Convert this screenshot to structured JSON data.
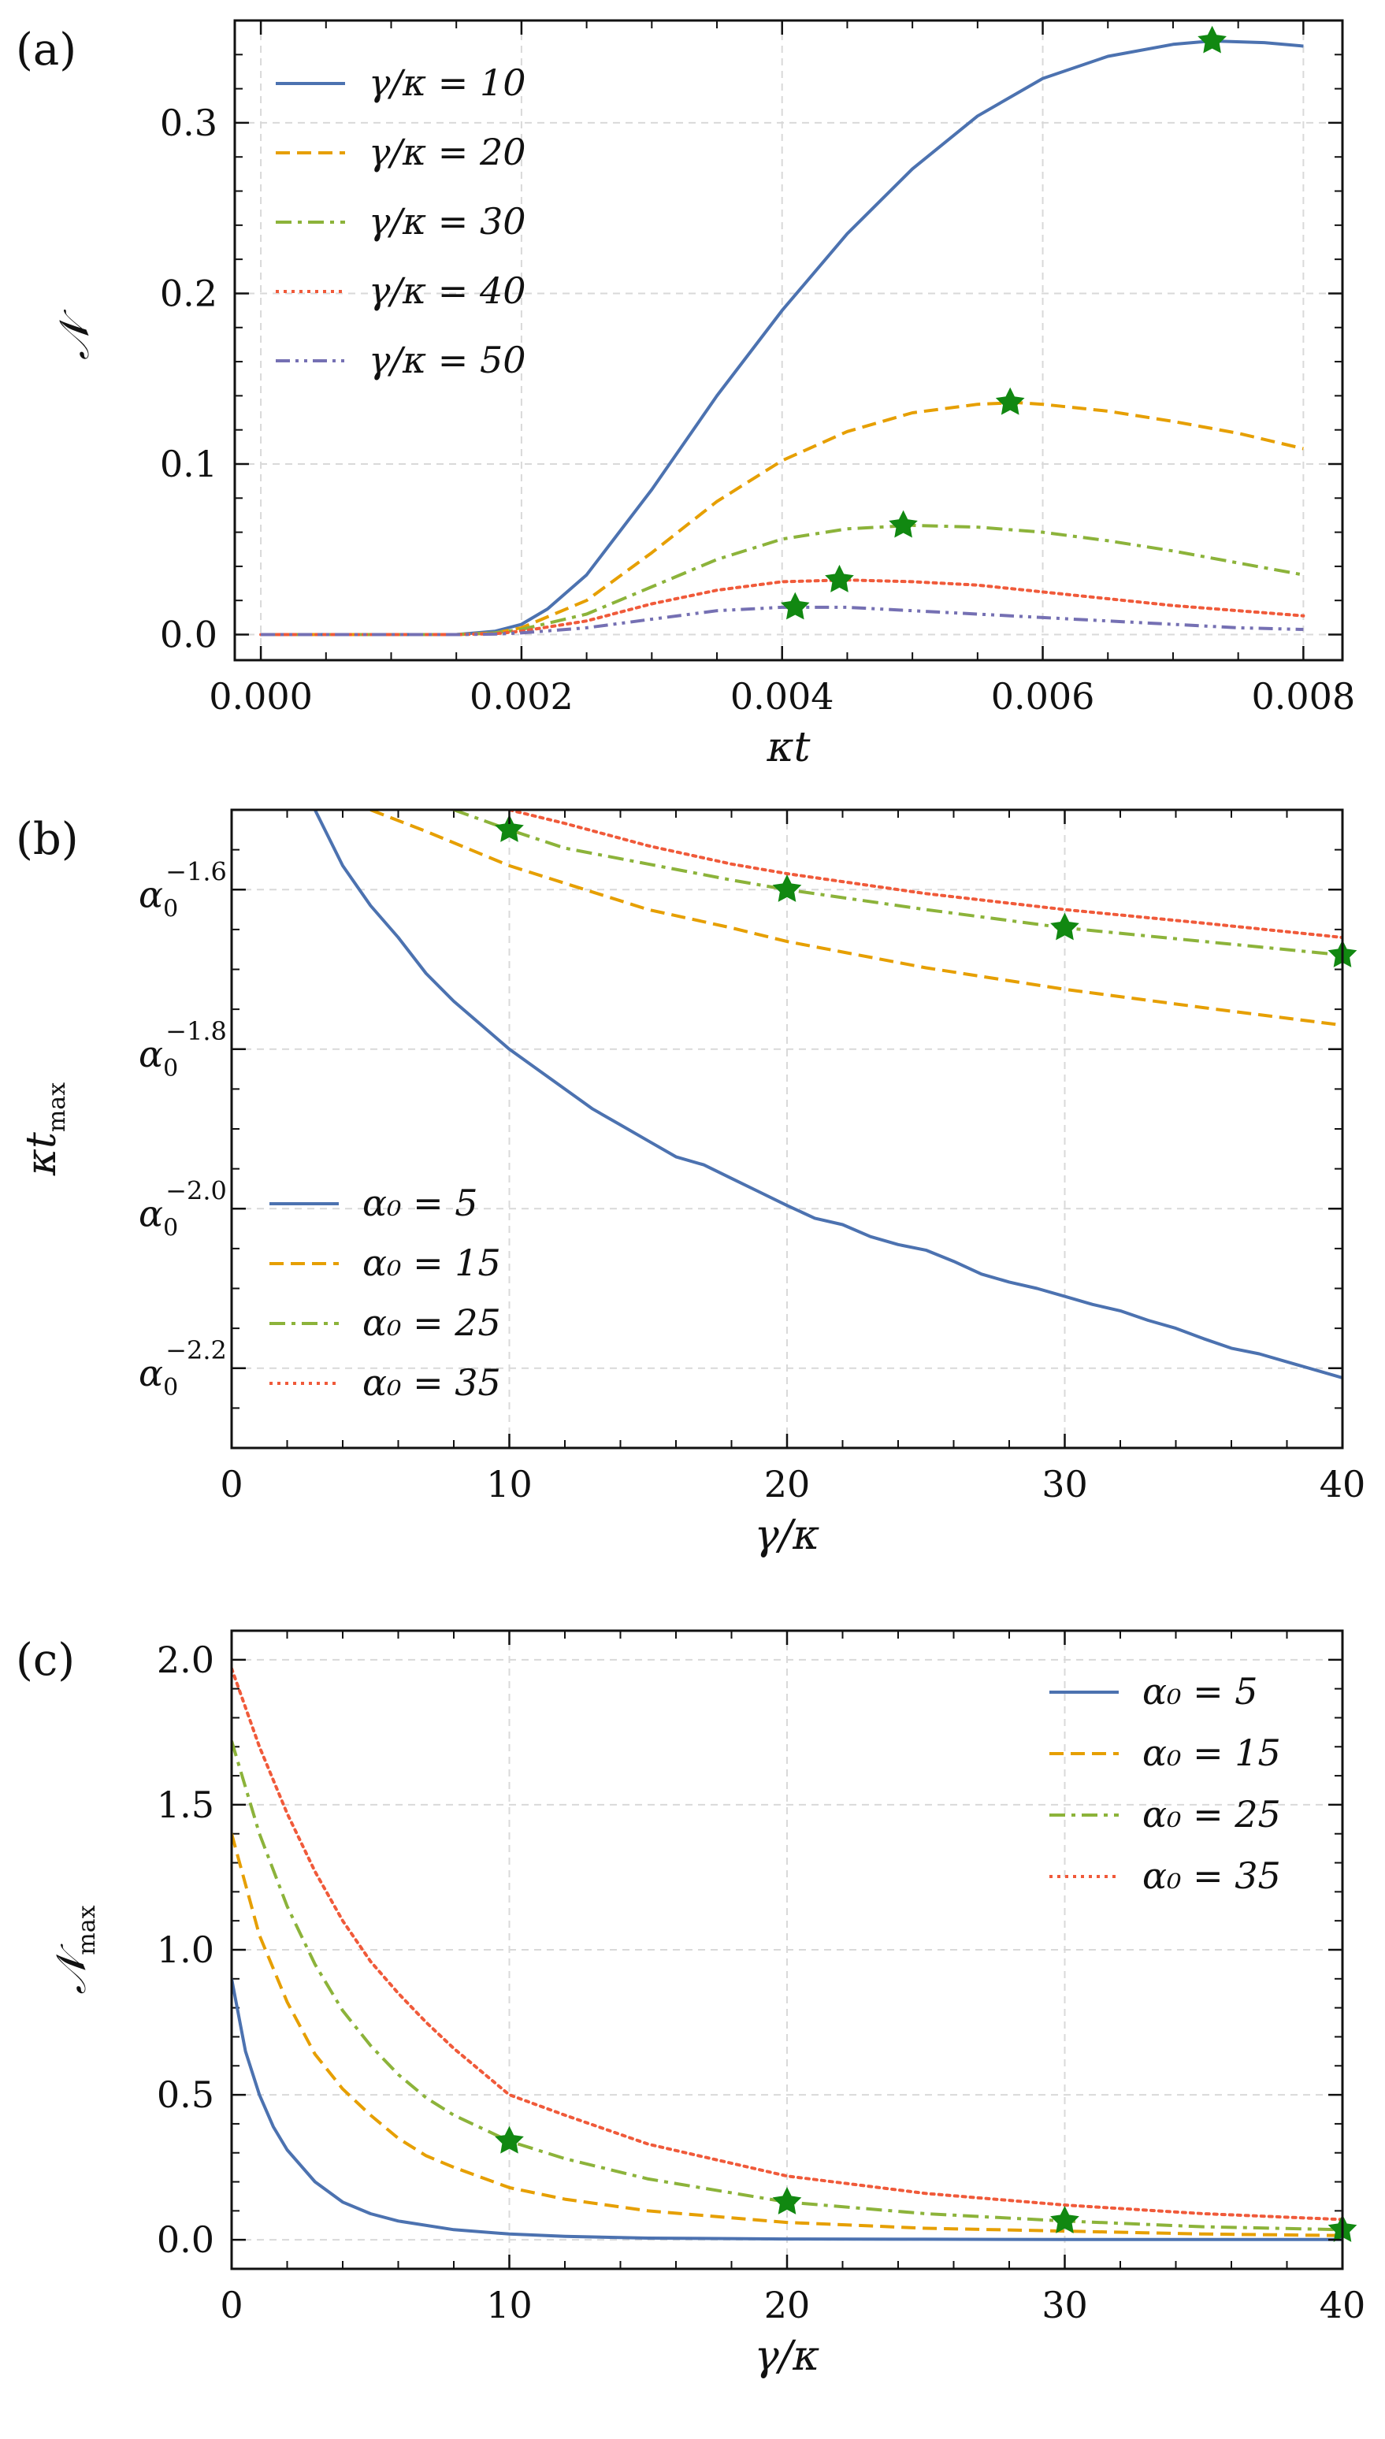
{
  "figure": {
    "panels": [
      {
        "id": "a",
        "label": "(a)",
        "xlabel": "κt",
        "ylabel": "𝒩",
        "legend_position": "upper-left",
        "xticks": [
          "0.000",
          "0.002",
          "0.004",
          "0.006",
          "0.008"
        ],
        "yticks": [
          "0.0",
          "0.1",
          "0.2",
          "0.3"
        ]
      },
      {
        "id": "b",
        "label": "(b)",
        "xlabel": "γ/κ",
        "ylabel": "κt",
        "ylabel_sub": "max",
        "legend_position": "lower-left",
        "xticks": [
          "0",
          "10",
          "20",
          "30",
          "40"
        ],
        "yticks_base": "α",
        "yticks_sub": "0",
        "yticks_exponents": [
          "−1.6",
          "−1.8",
          "−2.0",
          "−2.2"
        ]
      },
      {
        "id": "c",
        "label": "(c)",
        "xlabel": "γ/κ",
        "ylabel": "𝒩",
        "ylabel_sub": "max",
        "legend_position": "upper-right",
        "xticks": [
          "0",
          "10",
          "20",
          "30",
          "40"
        ],
        "yticks": [
          "0.0",
          "0.5",
          "1.0",
          "1.5",
          "2.0"
        ]
      }
    ]
  },
  "colors": {
    "blue": "#4C72B0",
    "orange": "#E69F00",
    "green": "#8CB33A",
    "red": "#F05A3A",
    "purple": "#7570B3",
    "star": "#118811",
    "grid": "#d9d9d9"
  },
  "chart_data": [
    {
      "type": "line",
      "panel": "a",
      "xlabel": "κt",
      "ylabel": "𝒩",
      "xlim": [
        -0.0002,
        0.0083
      ],
      "ylim": [
        -0.015,
        0.36
      ],
      "grid": true,
      "legend": "upper-left",
      "series": [
        {
          "name": "γ/κ = 10",
          "style": "solid",
          "color": "blue",
          "x": [
            0,
            0.0015,
            0.0018,
            0.002,
            0.0022,
            0.0025,
            0.003,
            0.0035,
            0.004,
            0.0045,
            0.005,
            0.0055,
            0.006,
            0.0065,
            0.007,
            0.0073,
            0.0077,
            0.008
          ],
          "y": [
            0,
            0,
            0.002,
            0.006,
            0.015,
            0.035,
            0.085,
            0.14,
            0.19,
            0.235,
            0.273,
            0.304,
            0.326,
            0.339,
            0.346,
            0.348,
            0.347,
            0.345
          ],
          "star": [
            0.0073,
            0.348
          ]
        },
        {
          "name": "γ/κ = 20",
          "style": "dashed",
          "color": "orange",
          "x": [
            0,
            0.0015,
            0.0018,
            0.002,
            0.0025,
            0.003,
            0.0035,
            0.004,
            0.0045,
            0.005,
            0.0055,
            0.0058,
            0.006,
            0.0065,
            0.007,
            0.0075,
            0.008
          ],
          "y": [
            0,
            0,
            0.001,
            0.004,
            0.02,
            0.048,
            0.078,
            0.102,
            0.119,
            0.13,
            0.135,
            0.136,
            0.135,
            0.131,
            0.125,
            0.118,
            0.109
          ],
          "star": [
            0.00575,
            0.136
          ]
        },
        {
          "name": "γ/κ = 30",
          "style": "dashdot",
          "color": "green",
          "x": [
            0,
            0.0015,
            0.0018,
            0.002,
            0.0025,
            0.003,
            0.0035,
            0.004,
            0.0045,
            0.005,
            0.0055,
            0.006,
            0.0065,
            0.007,
            0.0075,
            0.008
          ],
          "y": [
            0,
            0,
            0.001,
            0.003,
            0.012,
            0.028,
            0.044,
            0.056,
            0.062,
            0.064,
            0.063,
            0.06,
            0.055,
            0.049,
            0.042,
            0.035
          ],
          "star": [
            0.00493,
            0.064
          ]
        },
        {
          "name": "γ/κ = 40",
          "style": "dotted",
          "color": "red",
          "x": [
            0,
            0.0015,
            0.0018,
            0.002,
            0.0025,
            0.003,
            0.0035,
            0.004,
            0.0045,
            0.005,
            0.0055,
            0.006,
            0.0065,
            0.007,
            0.0075,
            0.008
          ],
          "y": [
            0,
            0,
            0.0005,
            0.002,
            0.008,
            0.018,
            0.026,
            0.031,
            0.032,
            0.031,
            0.029,
            0.025,
            0.021,
            0.017,
            0.014,
            0.011
          ],
          "star": [
            0.00444,
            0.032
          ]
        },
        {
          "name": "γ/κ = 50",
          "style": "dashdotdot",
          "color": "purple",
          "x": [
            0,
            0.0015,
            0.0018,
            0.002,
            0.0025,
            0.003,
            0.0035,
            0.004,
            0.0045,
            0.005,
            0.0055,
            0.006,
            0.0065,
            0.007,
            0.0075,
            0.008
          ],
          "y": [
            0,
            0,
            0.0003,
            0.001,
            0.004,
            0.009,
            0.014,
            0.016,
            0.016,
            0.014,
            0.012,
            0.01,
            0.008,
            0.006,
            0.004,
            0.003
          ],
          "star": [
            0.0041,
            0.016
          ]
        }
      ]
    },
    {
      "type": "line",
      "panel": "b",
      "xlabel": "γ/κ",
      "ylabel": "κt_max",
      "y_scale": "log",
      "xlim": [
        0,
        40
      ],
      "ylim_exponent_of_alpha0": [
        -2.3,
        -1.5
      ],
      "grid": true,
      "legend": "lower-left",
      "series": [
        {
          "name": "α₀ = 5",
          "style": "solid",
          "color": "blue",
          "x": [
            3,
            4,
            5,
            6,
            7,
            8,
            9,
            10,
            11,
            12,
            13,
            14,
            15,
            16,
            17,
            18,
            19,
            20,
            21,
            22,
            23,
            24,
            25,
            26,
            27,
            28,
            29,
            30,
            31,
            32,
            33,
            34,
            35,
            36,
            37,
            38,
            39,
            40
          ],
          "exponent": [
            -1.5,
            -1.57,
            -1.62,
            -1.66,
            -1.705,
            -1.74,
            -1.77,
            -1.8,
            -1.825,
            -1.85,
            -1.875,
            -1.895,
            -1.915,
            -1.935,
            -1.945,
            -1.962,
            -1.979,
            -1.996,
            -2.012,
            -2.02,
            -2.035,
            -2.045,
            -2.052,
            -2.066,
            -2.082,
            -2.092,
            -2.1,
            -2.11,
            -2.12,
            -2.128,
            -2.14,
            -2.15,
            -2.163,
            -2.175,
            -2.182,
            -2.192,
            -2.202,
            -2.212
          ]
        },
        {
          "name": "α₀ = 15",
          "style": "dashed",
          "color": "orange",
          "x": [
            5,
            7,
            10,
            12,
            15,
            18,
            20,
            25,
            30,
            35,
            40
          ],
          "exponent": [
            -1.5,
            -1.527,
            -1.57,
            -1.592,
            -1.625,
            -1.648,
            -1.665,
            -1.698,
            -1.725,
            -1.748,
            -1.77
          ]
        },
        {
          "name": "α₀ = 25",
          "style": "dashdot",
          "color": "green",
          "x": [
            8,
            10,
            12,
            15,
            18,
            20,
            25,
            30,
            35,
            40
          ],
          "exponent": [
            -1.5,
            -1.525,
            -1.548,
            -1.568,
            -1.588,
            -1.6,
            -1.625,
            -1.648,
            -1.665,
            -1.682
          ],
          "stars": [
            [
              10,
              -1.525
            ],
            [
              20,
              -1.6
            ],
            [
              30,
              -1.648
            ],
            [
              40,
              -1.682
            ]
          ]
        },
        {
          "name": "α₀ = 35",
          "style": "dotted",
          "color": "red",
          "x": [
            10,
            12,
            15,
            18,
            20,
            25,
            30,
            35,
            40
          ],
          "exponent": [
            -1.5,
            -1.517,
            -1.545,
            -1.568,
            -1.58,
            -1.605,
            -1.625,
            -1.642,
            -1.66
          ]
        }
      ]
    },
    {
      "type": "line",
      "panel": "c",
      "xlabel": "γ/κ",
      "ylabel": "𝒩_max",
      "xlim": [
        0,
        40
      ],
      "ylim": [
        -0.1,
        2.1
      ],
      "grid": true,
      "legend": "upper-right",
      "series": [
        {
          "name": "α₀ = 5",
          "style": "solid",
          "color": "blue",
          "x": [
            0,
            0.5,
            1,
            1.5,
            2,
            3,
            4,
            5,
            6,
            8,
            10,
            12,
            15,
            20,
            25,
            30,
            35,
            40
          ],
          "y": [
            0.9,
            0.65,
            0.5,
            0.39,
            0.31,
            0.2,
            0.13,
            0.09,
            0.065,
            0.035,
            0.02,
            0.012,
            0.006,
            0.003,
            0.002,
            0.001,
            0.001,
            0.001
          ]
        },
        {
          "name": "α₀ = 15",
          "style": "dashed",
          "color": "orange",
          "x": [
            0,
            1,
            2,
            3,
            4,
            5,
            6,
            7,
            8,
            10,
            12,
            15,
            20,
            25,
            30,
            35,
            40
          ],
          "y": [
            1.4,
            1.05,
            0.82,
            0.64,
            0.52,
            0.43,
            0.35,
            0.29,
            0.25,
            0.18,
            0.14,
            0.1,
            0.06,
            0.04,
            0.03,
            0.02,
            0.015
          ]
        },
        {
          "name": "α₀ = 25",
          "style": "dashdot",
          "color": "green",
          "x": [
            0,
            1,
            2,
            3,
            4,
            5,
            6,
            7,
            8,
            10,
            12,
            15,
            20,
            25,
            30,
            35,
            40
          ],
          "y": [
            1.72,
            1.4,
            1.15,
            0.95,
            0.79,
            0.67,
            0.57,
            0.49,
            0.43,
            0.34,
            0.28,
            0.21,
            0.13,
            0.09,
            0.065,
            0.045,
            0.035
          ],
          "stars": [
            [
              10,
              0.34
            ],
            [
              20,
              0.13
            ],
            [
              30,
              0.065
            ],
            [
              40,
              0.035
            ]
          ]
        },
        {
          "name": "α₀ = 35",
          "style": "dotted",
          "color": "red",
          "x": [
            0,
            1,
            2,
            3,
            4,
            5,
            6,
            7,
            8,
            10,
            12,
            15,
            20,
            25,
            30,
            35,
            40
          ],
          "y": [
            1.97,
            1.7,
            1.47,
            1.27,
            1.1,
            0.96,
            0.85,
            0.75,
            0.66,
            0.5,
            0.43,
            0.33,
            0.22,
            0.16,
            0.12,
            0.09,
            0.07
          ]
        }
      ]
    }
  ]
}
